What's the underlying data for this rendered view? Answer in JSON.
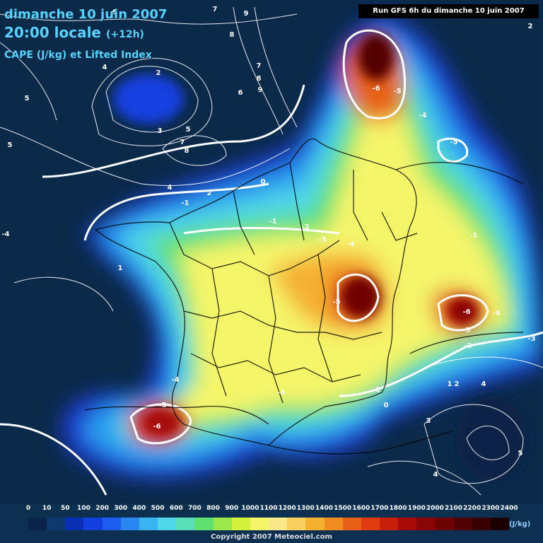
{
  "header": {
    "date_line": "dimanche 10 juin 2007",
    "time_line": "20:00 locale",
    "time_offset": "(+12h)",
    "parameter": "CAPE (J/kg) et Lifted Index"
  },
  "run_info": "Run GFS 6h du dimanche 10 juin 2007",
  "legend": {
    "unit": "(J/kg)",
    "ticks": [
      "0",
      "10",
      "50",
      "100",
      "200",
      "300",
      "400",
      "500",
      "600",
      "700",
      "800",
      "900",
      "1000",
      "1100",
      "1200",
      "1300",
      "1400",
      "1500",
      "1600",
      "1700",
      "1800",
      "1900",
      "2000",
      "2100",
      "2200",
      "2300",
      "2400"
    ],
    "colors": [
      "#0b2346",
      "#0c3a6e",
      "#0a2fb5",
      "#1240e0",
      "#1e5cf0",
      "#2a86f0",
      "#39b3f2",
      "#4fd7e8",
      "#5ae0b8",
      "#60e070",
      "#9ae84a",
      "#d2f03c",
      "#f5f56a",
      "#f8e88a",
      "#f7d060",
      "#f5b030",
      "#f08c20",
      "#e86018",
      "#e03c10",
      "#c81e0a",
      "#a80a0a",
      "#8a0505",
      "#6e0303",
      "#520000",
      "#3a0000",
      "#1a0000"
    ]
  },
  "lifted_index_labels": [
    "-6",
    "-5",
    "-4",
    "-3",
    "-2",
    "-1",
    "0",
    "1",
    "2",
    "3",
    "4",
    "5",
    "6",
    "7",
    "8",
    "9"
  ],
  "copyright": "Copyright 2007 Meteociel.com"
}
